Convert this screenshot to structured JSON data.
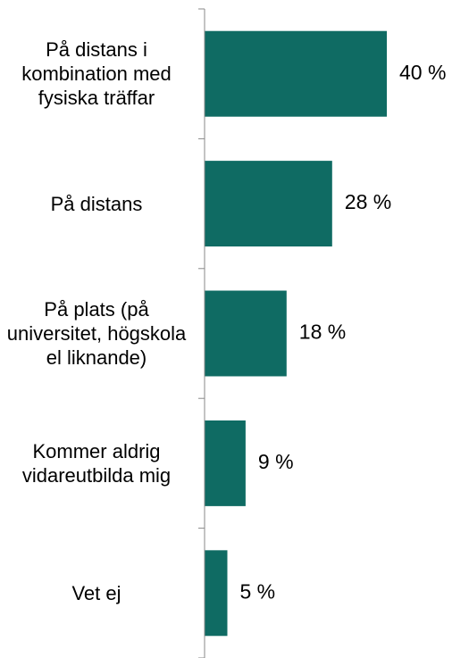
{
  "chart_data": {
    "type": "bar",
    "orientation": "horizontal",
    "categories": [
      "På distans i kombination med fysiska träffar",
      "På distans",
      "På plats (på universitet, högskola el liknande)",
      "Kommer aldrig vidareutbilda mig",
      "Vet ej"
    ],
    "values": [
      40,
      28,
      18,
      9,
      5
    ],
    "value_labels": [
      "40 %",
      "28 %",
      "18 %",
      "9 %",
      "5 %"
    ],
    "color": "#0f6b63"
  }
}
